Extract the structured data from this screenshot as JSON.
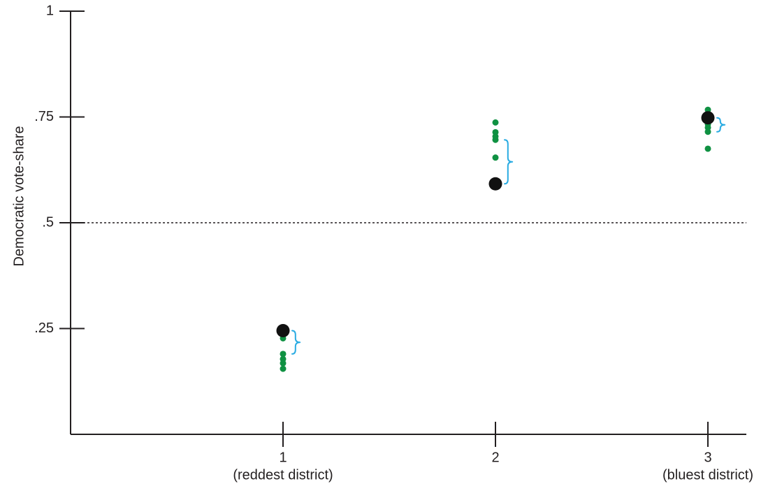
{
  "chart_data": {
    "type": "scatter",
    "title": "",
    "xlabel": "",
    "ylabel": "Democratic vote-share",
    "ylim": [
      0,
      1
    ],
    "y_ticks": [
      {
        "value": 1,
        "label": "1"
      },
      {
        "value": 0.75,
        "label": ".75"
      },
      {
        "value": 0.5,
        "label": ".5"
      },
      {
        "value": 0.25,
        "label": ".25"
      }
    ],
    "reference_line": {
      "value": 0.5,
      "style": "dotted"
    },
    "categories": [
      {
        "x": 1,
        "label": "1",
        "sublabel": "(reddest district)"
      },
      {
        "x": 2,
        "label": "2",
        "sublabel": ""
      },
      {
        "x": 3,
        "label": "3",
        "sublabel": "(bluest district)"
      }
    ],
    "series": [
      {
        "color": "#111111",
        "marker": "large-circle",
        "points": [
          {
            "x": 1,
            "y": 0.245
          },
          {
            "x": 2,
            "y": 0.592
          },
          {
            "x": 3,
            "y": 0.748
          }
        ]
      },
      {
        "color": "#0f9142",
        "marker": "small-circle",
        "points": [
          {
            "x": 1,
            "y": 0.227
          },
          {
            "x": 1,
            "y": 0.19
          },
          {
            "x": 1,
            "y": 0.178
          },
          {
            "x": 1,
            "y": 0.168
          },
          {
            "x": 1,
            "y": 0.155
          },
          {
            "x": 2,
            "y": 0.737
          },
          {
            "x": 2,
            "y": 0.714
          },
          {
            "x": 2,
            "y": 0.704
          },
          {
            "x": 2,
            "y": 0.696
          },
          {
            "x": 2,
            "y": 0.654
          },
          {
            "x": 3,
            "y": 0.767
          },
          {
            "x": 3,
            "y": 0.733
          },
          {
            "x": 3,
            "y": 0.725
          },
          {
            "x": 3,
            "y": 0.715
          },
          {
            "x": 3,
            "y": 0.675
          }
        ]
      }
    ],
    "braces": [
      {
        "x": 1,
        "y_from": 0.245,
        "y_to": 0.19,
        "color": "#29abe2"
      },
      {
        "x": 2,
        "y_from": 0.696,
        "y_to": 0.592,
        "color": "#29abe2"
      },
      {
        "x": 3,
        "y_from": 0.748,
        "y_to": 0.715,
        "color": "#29abe2"
      }
    ],
    "grid": false,
    "legend": "none"
  }
}
